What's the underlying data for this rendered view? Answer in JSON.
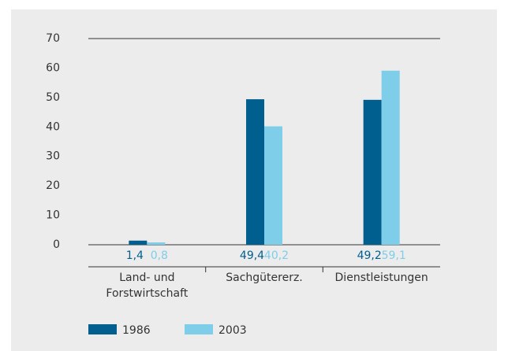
{
  "chart_data": {
    "type": "bar",
    "categories": [
      "Land- und Forstwirtschaft",
      "Sachgütererz.",
      "Dienstleistungen"
    ],
    "series": [
      {
        "name": "1986",
        "color": "#005f8f",
        "values": [
          1.4,
          49.4,
          49.2
        ],
        "value_labels": [
          "1,4",
          "49,4",
          "49,2"
        ]
      },
      {
        "name": "2003",
        "color": "#7ecde9",
        "values": [
          0.8,
          40.2,
          59.1
        ],
        "value_labels": [
          "0,8",
          "40,2",
          "59,1"
        ]
      }
    ],
    "ylim": [
      0,
      70
    ],
    "yticks": [
      0,
      10,
      20,
      30,
      40,
      50,
      60,
      70
    ],
    "grid": false
  }
}
